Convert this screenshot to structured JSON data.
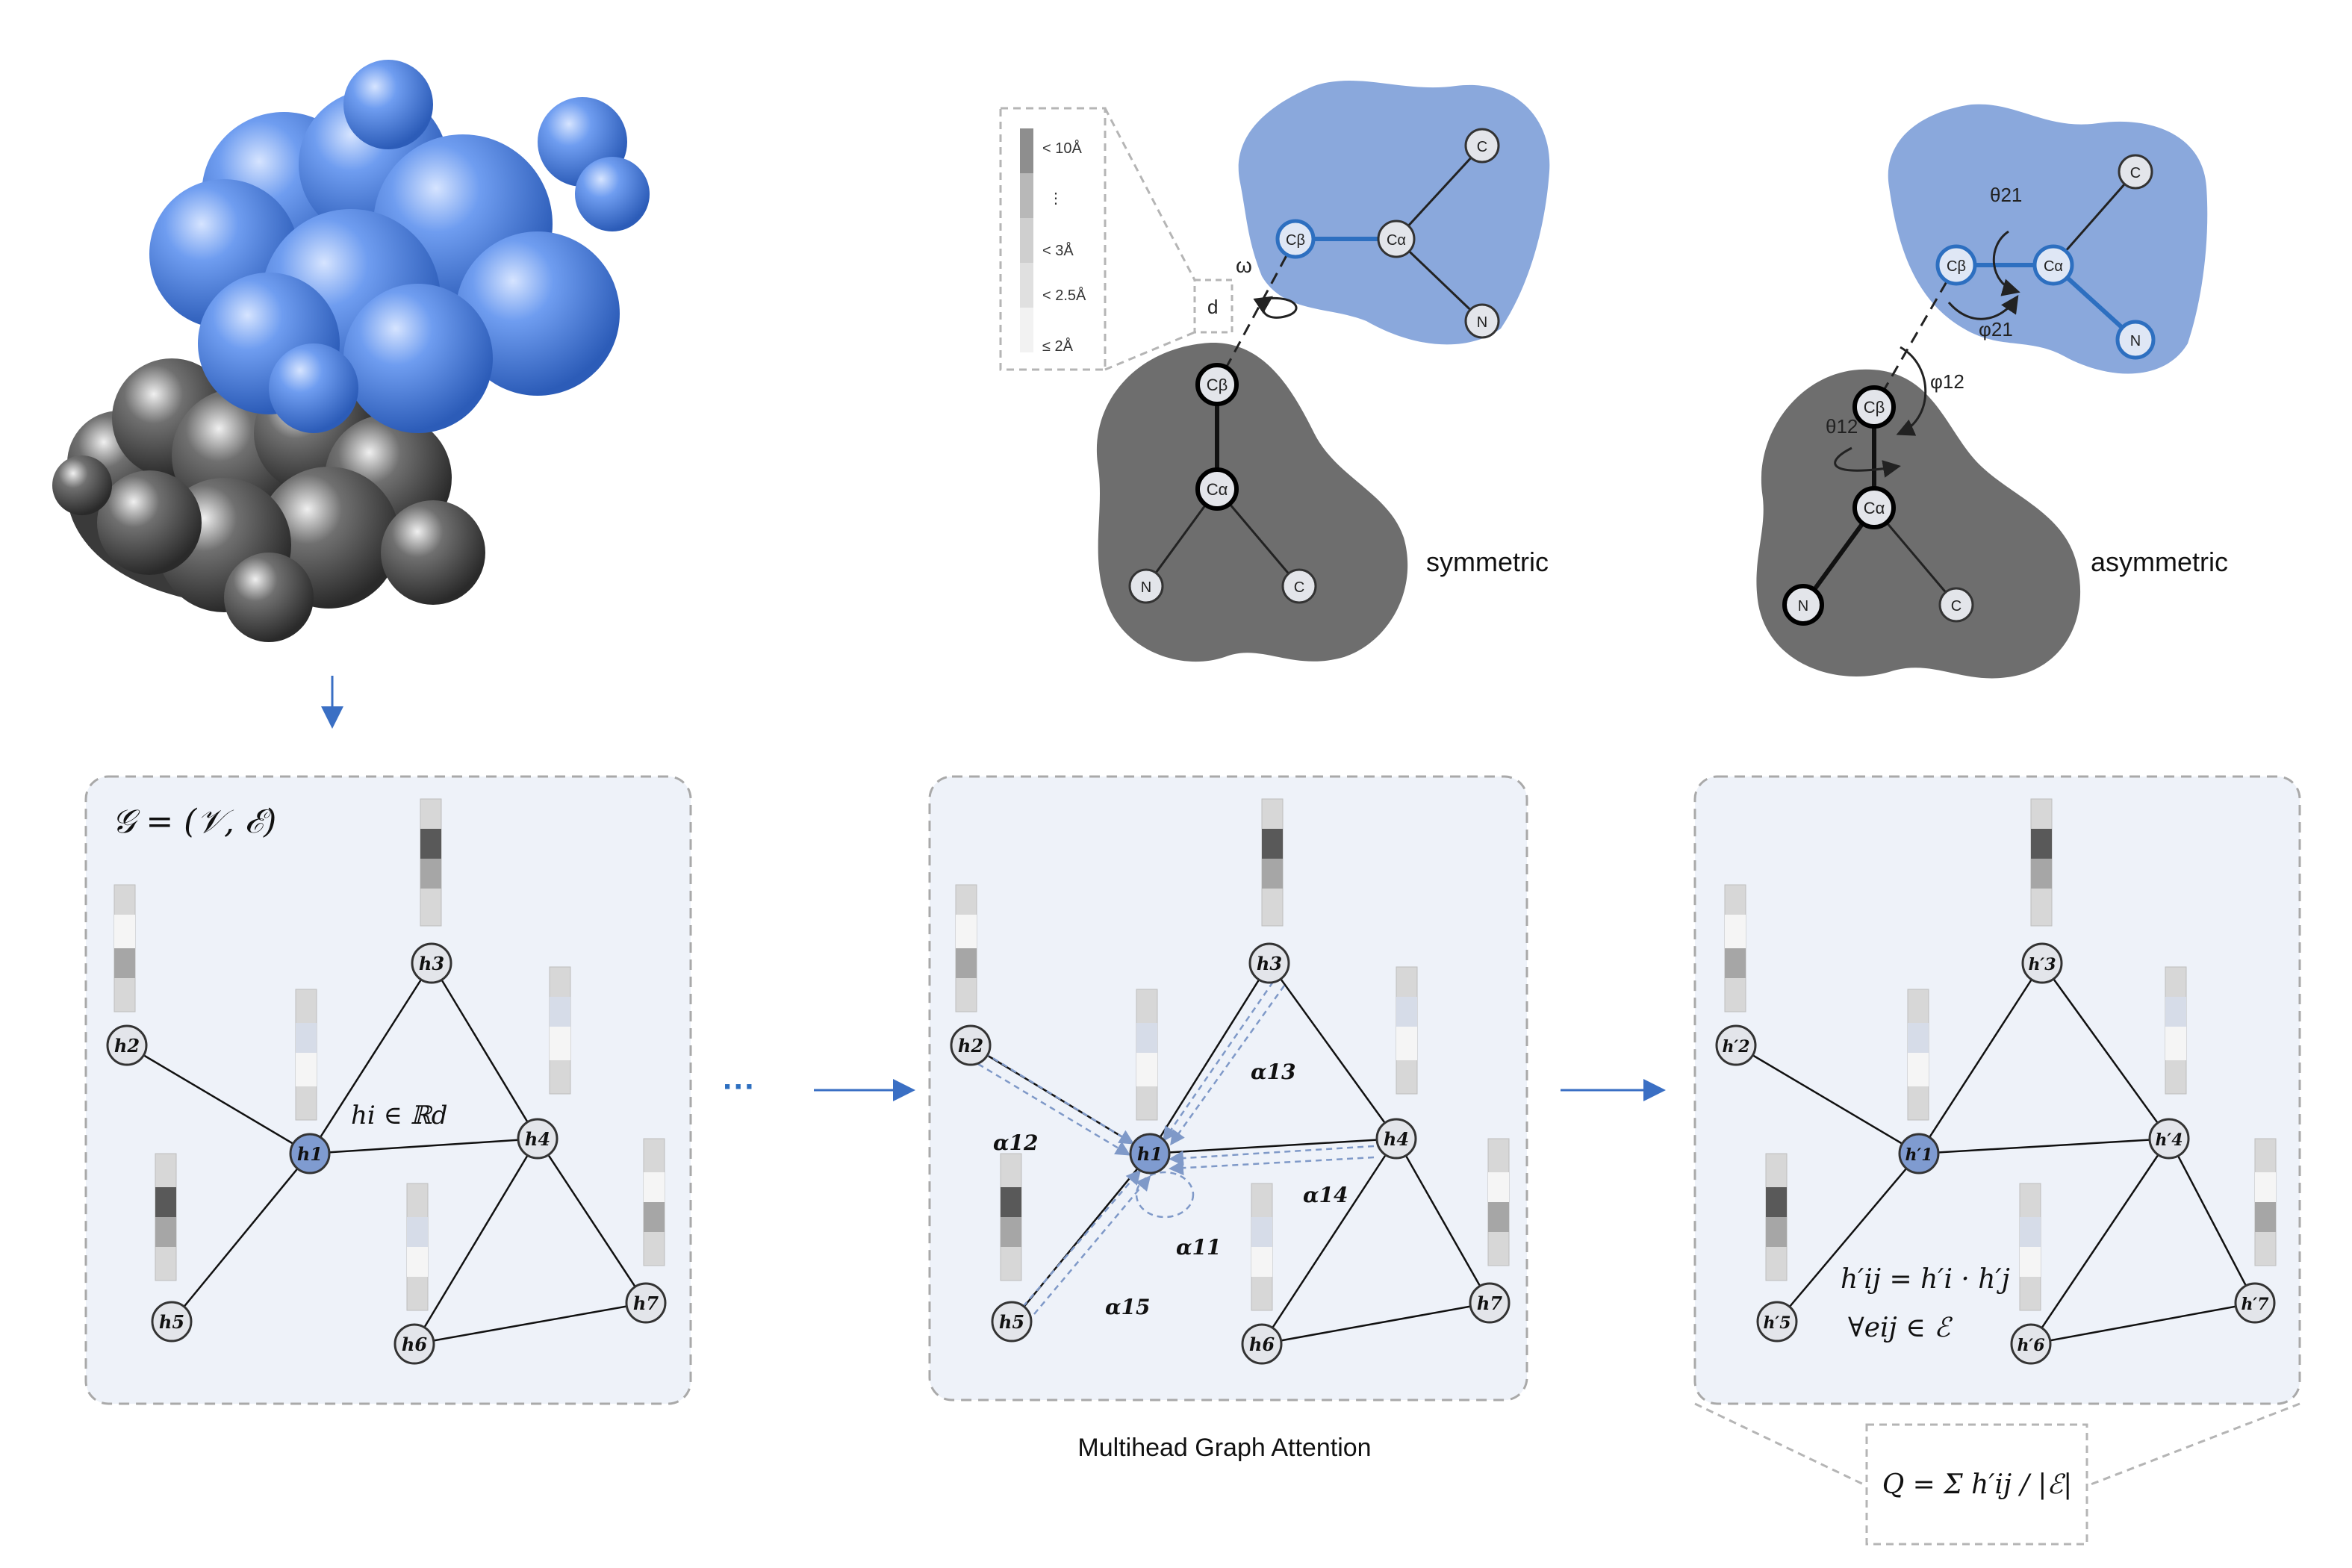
{
  "symmetric": {
    "scale": {
      "title_10": "< 10Å",
      "dots": "⋮",
      "title_3": "< 3Å",
      "title_25": "< 2.5Å",
      "title_2": "≤ 2Å"
    },
    "d_label": "d",
    "omega": "ω",
    "caption": "symmetric",
    "blue_atoms": [
      "Cβ",
      "Cα",
      "C",
      "N"
    ],
    "gray_atoms": [
      "Cβ",
      "Cα",
      "N",
      "C"
    ]
  },
  "asymmetric": {
    "caption": "asymmetric",
    "theta21": "θ21",
    "phi21": "φ21",
    "phi12": "φ12",
    "theta12": "θ12",
    "blue_atoms": [
      "Cβ",
      "Cα",
      "C",
      "N"
    ],
    "gray_atoms": [
      "Cβ",
      "Cα",
      "N",
      "C"
    ]
  },
  "graph_panel": {
    "formula": "𝒢 = (𝒱, ℰ)",
    "feature_label": "hi ∈ ℝd",
    "nodes": [
      "h1",
      "h2",
      "h3",
      "h4",
      "h5",
      "h6",
      "h7"
    ]
  },
  "ellipsis": "···",
  "attention_panel": {
    "caption": "Multihead Graph Attention",
    "alphas": [
      "α12",
      "α13",
      "α14",
      "α11",
      "α15"
    ]
  },
  "output_panel": {
    "formula_line1": "h′ij = h′i · h′j",
    "formula_line2": "∀eij ∈ ℰ",
    "nodes": [
      "h′1",
      "h′2",
      "h′3",
      "h′4",
      "h′5",
      "h′6",
      "h′7"
    ]
  },
  "q_formula": "Q = Σ h′ij / |ℰ|",
  "colors": {
    "blue_region": "#8aa8dc",
    "gray_region": "#6e6e6e",
    "panel_bg": "#eef2f9",
    "node_blue": "#7f9bd0",
    "node_gray": "#e3e5ea",
    "accent_blue": "#2d6fc0"
  }
}
